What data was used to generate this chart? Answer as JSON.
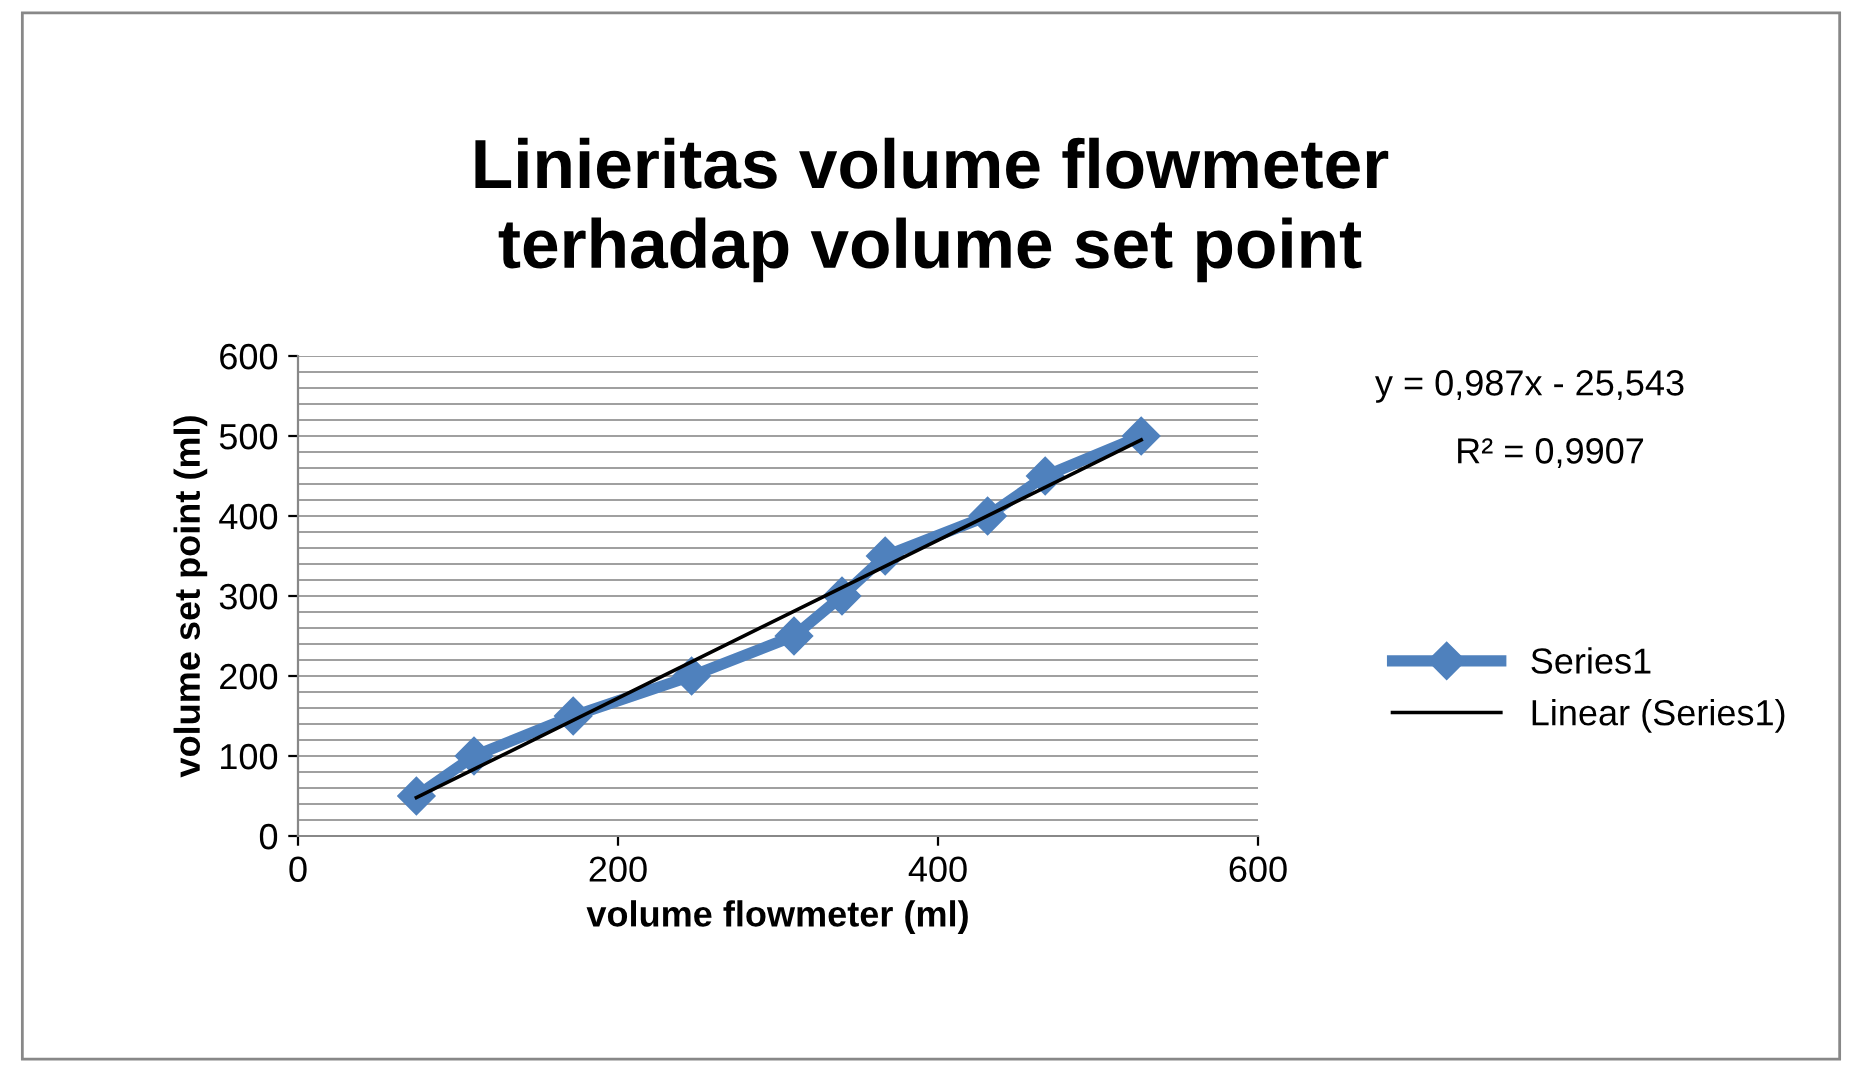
{
  "chart_data": {
    "type": "line",
    "title": "Linieritas volume flowmeter\nterhadap volume set point",
    "xlabel": "volume flowmeter (ml)",
    "ylabel": "volume set point (ml)",
    "xlim": [
      0,
      600
    ],
    "xticks": [
      0,
      200,
      400,
      600
    ],
    "ylim": [
      0,
      600
    ],
    "yticks": [
      0,
      100,
      200,
      300,
      400,
      500,
      600
    ],
    "grid": "y",
    "legend": "right",
    "marker": "diamond",
    "line_style": "solid",
    "annotations": [
      "y = 0,987x - 25,543",
      "R² = 0,9907"
    ],
    "series": [
      {
        "name": "Series1",
        "color": "#4f81bd",
        "x": [
          74,
          110,
          172,
          246,
          310,
          340,
          367,
          431,
          467,
          527
        ],
        "values": [
          50,
          100,
          150,
          200,
          250,
          300,
          350,
          400,
          450,
          500
        ]
      },
      {
        "name": "Linear (Series1)",
        "color": "#000000",
        "type": "line",
        "marker": "none",
        "x": [
          74,
          527
        ],
        "values": [
          48,
          495
        ]
      }
    ]
  }
}
